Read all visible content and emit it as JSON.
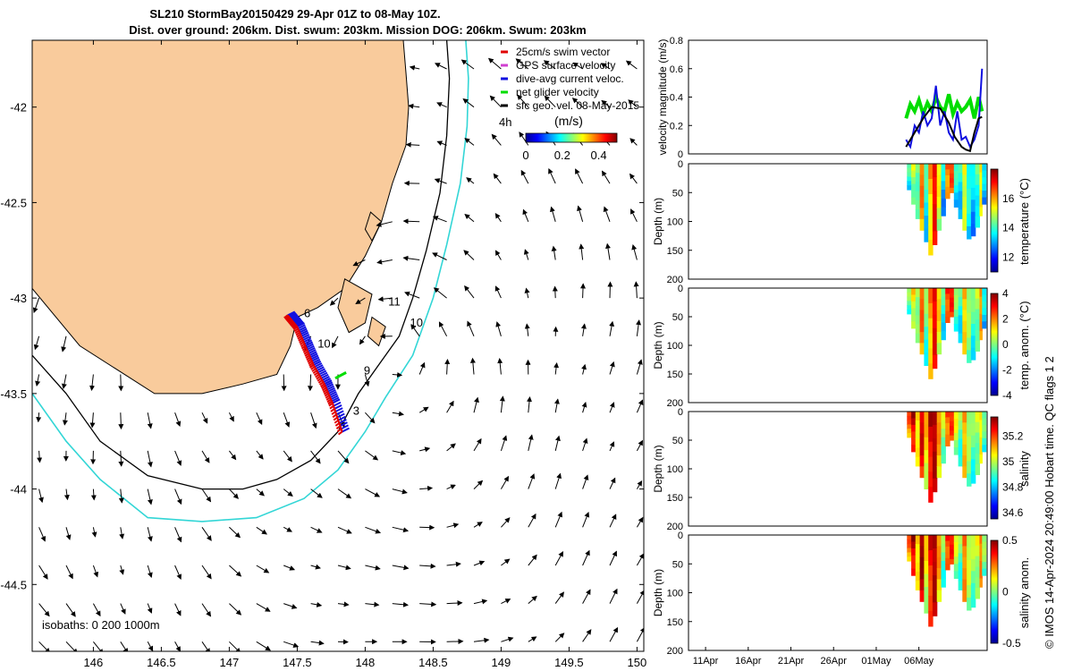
{
  "title_line1": "SL210 StormBay20150429 29-Apr 01Z to 08-May 10Z.",
  "title_line2": "Dist. over ground: 206km. Dist. swum: 203km. Mission DOG: 206km. Swum: 203km",
  "credit": "© IMOS 14-Apr-2024 20:49:00 Hobart time. QC flags 1  2",
  "colors": {
    "land": "#f9cb9c",
    "isobath_200": "#000000",
    "isobath_1000": "#33d6d6",
    "track_red": "#e00000",
    "track_blue": "#1010e0",
    "net_green": "#00dd00",
    "vector": "#000000"
  },
  "chart_data": [
    {
      "type": "map",
      "name": "glider track map",
      "xlim": [
        145.55,
        150.05
      ],
      "ylim": [
        -44.85,
        -41.65
      ],
      "xticks": [
        146,
        146.5,
        147,
        147.5,
        148,
        148.5,
        149,
        149.5,
        150
      ],
      "xtick_labels": [
        "146",
        "146.5",
        "147",
        "147.5",
        "148",
        "148.5",
        "149",
        "149.5",
        "150"
      ],
      "yticks": [
        -42,
        -42.5,
        -43,
        -43.5,
        -44,
        -44.5
      ],
      "ytick_labels": [
        "-42",
        "-42.5",
        "-43",
        "-43.5",
        "-44",
        "-44.5"
      ],
      "legend": [
        {
          "label": "25cm/s swim vector",
          "color": "#e00000"
        },
        {
          "label": "GPS surface velocity",
          "color": "#d040d0"
        },
        {
          "label": "dive-avg current veloc.",
          "color": "#1010e0"
        },
        {
          "label": "net glider velocity",
          "color": "#00dd00"
        },
        {
          "label": "sfc geo. vel. 08-May-2015",
          "color": "#000000"
        }
      ],
      "colorbar": {
        "label": "(m/s)",
        "ticks": [
          0,
          0.2,
          0.4
        ],
        "tick_labels": [
          "0",
          "0.2",
          "0.4"
        ],
        "range": [
          0,
          0.5
        ]
      },
      "colorbar_note": "4h",
      "isobath_note": "isobaths: 0   200  1000m",
      "track": [
        [
          147.43,
          -43.09
        ],
        [
          147.5,
          -43.15
        ],
        [
          147.56,
          -43.25
        ],
        [
          147.62,
          -43.35
        ],
        [
          147.7,
          -43.45
        ],
        [
          147.76,
          -43.55
        ],
        [
          147.83,
          -43.7
        ]
      ],
      "day_labels": [
        {
          "text": "6",
          "lon": 147.55,
          "lat": -43.1
        },
        {
          "text": "10",
          "lon": 147.65,
          "lat": -43.26
        },
        {
          "text": "9",
          "lon": 147.99,
          "lat": -43.4
        },
        {
          "text": "3",
          "lon": 147.91,
          "lat": -43.61
        },
        {
          "text": "11",
          "lon": 148.17,
          "lat": -43.04
        },
        {
          "text": "10",
          "lon": 148.33,
          "lat": -43.15
        }
      ],
      "land": [
        [
          145.55,
          -41.65
        ],
        [
          148.28,
          -41.65
        ],
        [
          148.3,
          -41.82
        ],
        [
          148.32,
          -42.0
        ],
        [
          148.3,
          -42.2
        ],
        [
          148.2,
          -42.4
        ],
        [
          148.12,
          -42.6
        ],
        [
          148.0,
          -42.78
        ],
        [
          147.85,
          -42.95
        ],
        [
          147.65,
          -43.05
        ],
        [
          147.5,
          -43.1
        ],
        [
          147.45,
          -43.25
        ],
        [
          147.35,
          -43.4
        ],
        [
          147.1,
          -43.45
        ],
        [
          146.8,
          -43.5
        ],
        [
          146.45,
          -43.5
        ],
        [
          145.9,
          -43.25
        ],
        [
          145.55,
          -42.95
        ]
      ],
      "islands": [
        [
          [
            148.04,
            -42.55
          ],
          [
            148.12,
            -42.6
          ],
          [
            148.05,
            -42.7
          ],
          [
            148.0,
            -42.64
          ]
        ],
        [
          [
            147.85,
            -42.9
          ],
          [
            148.05,
            -42.98
          ],
          [
            148.0,
            -43.13
          ],
          [
            147.88,
            -43.18
          ],
          [
            147.8,
            -43.05
          ]
        ],
        [
          [
            148.05,
            -43.1
          ],
          [
            148.15,
            -43.15
          ],
          [
            148.1,
            -43.25
          ],
          [
            148.02,
            -43.2
          ]
        ]
      ],
      "isobath_200m": [
        [
          145.55,
          -43.3
        ],
        [
          145.8,
          -43.5
        ],
        [
          146.05,
          -43.75
        ],
        [
          146.4,
          -43.93
        ],
        [
          146.8,
          -44.0
        ],
        [
          147.1,
          -44.0
        ],
        [
          147.35,
          -43.95
        ],
        [
          147.6,
          -43.85
        ],
        [
          147.8,
          -43.7
        ],
        [
          147.95,
          -43.5
        ],
        [
          148.1,
          -43.35
        ],
        [
          148.25,
          -43.2
        ],
        [
          148.35,
          -43.0
        ],
        [
          148.45,
          -42.75
        ],
        [
          148.55,
          -42.45
        ],
        [
          148.6,
          -42.15
        ],
        [
          148.62,
          -41.85
        ],
        [
          148.6,
          -41.65
        ]
      ],
      "isobath_1000m": [
        [
          145.55,
          -43.5
        ],
        [
          145.8,
          -43.75
        ],
        [
          146.05,
          -43.95
        ],
        [
          146.4,
          -44.15
        ],
        [
          146.8,
          -44.17
        ],
        [
          147.2,
          -44.15
        ],
        [
          147.55,
          -44.05
        ],
        [
          147.8,
          -43.9
        ],
        [
          148.0,
          -43.7
        ],
        [
          148.15,
          -43.52
        ],
        [
          148.35,
          -43.3
        ],
        [
          148.5,
          -43.0
        ],
        [
          148.6,
          -42.72
        ],
        [
          148.7,
          -42.4
        ],
        [
          148.75,
          -42.1
        ],
        [
          148.76,
          -41.85
        ],
        [
          148.74,
          -41.65
        ]
      ]
    },
    {
      "type": "line",
      "name": "velocity magnitude",
      "ylabel": "velocity magnitude (m/s)",
      "ylim": [
        0,
        0.8
      ],
      "yticks": [
        0,
        0.2,
        0.4,
        0.6,
        0.8
      ],
      "xlim": [
        0,
        35
      ],
      "series": [
        {
          "name": "net glider velocity",
          "color": "#00dd00",
          "x": [
            25.5,
            26,
            26.5,
            27,
            27.5,
            28,
            28.5,
            29,
            29.5,
            30,
            30.5,
            31,
            31.5,
            32,
            32.5,
            33,
            33.5,
            34,
            34.4
          ],
          "values": [
            0.25,
            0.35,
            0.3,
            0.38,
            0.28,
            0.36,
            0.3,
            0.4,
            0.33,
            0.3,
            0.42,
            0.28,
            0.36,
            0.3,
            0.33,
            0.38,
            0.25,
            0.4,
            0.3
          ]
        },
        {
          "name": "dive-avg current veloc.",
          "color": "#1010e0",
          "x": [
            25.5,
            26,
            26.5,
            27,
            27.5,
            28,
            28.5,
            29,
            29.5,
            30,
            30.5,
            31,
            31.5,
            32,
            32.5,
            33,
            33.5,
            34,
            34.4
          ],
          "values": [
            0.1,
            0.05,
            0.2,
            0.15,
            0.3,
            0.2,
            0.25,
            0.48,
            0.2,
            0.3,
            0.15,
            0.1,
            0.3,
            0.1,
            0.12,
            0.05,
            0.1,
            0.2,
            0.6
          ]
        },
        {
          "name": "sfc geo. vel.",
          "color": "#000000",
          "x": [
            25.5,
            26.5,
            27.5,
            28.5,
            29.5,
            30.5,
            31.2,
            32,
            32.5,
            33,
            33.5,
            34,
            34.4
          ],
          "values": [
            0.05,
            0.15,
            0.25,
            0.33,
            0.32,
            0.22,
            0.12,
            0.05,
            0.03,
            0.02,
            0.15,
            0.25,
            0.26
          ]
        }
      ]
    },
    {
      "type": "heatmap",
      "name": "temperature section",
      "ylabel": "Depth (m)",
      "colorbar_label": "temperature (°C)",
      "colorbar_ticks": [
        12,
        14,
        16
      ],
      "color_range": [
        11,
        18
      ],
      "yticks": [
        50,
        100,
        150,
        200
      ],
      "ylim": [
        0,
        200
      ],
      "x_days": [
        25.6,
        27.7,
        29.8,
        31.9,
        34.0
      ],
      "columns": [
        25.6,
        26.1,
        26.6,
        27.1,
        27.6,
        28.1,
        28.6,
        29.1,
        29.6,
        30.1,
        30.6,
        31.1,
        31.6,
        32.1,
        32.6,
        33.1,
        33.6,
        34.1,
        34.4
      ],
      "max_depth": [
        45,
        70,
        95,
        115,
        135,
        158,
        140,
        115,
        90,
        60,
        50,
        75,
        95,
        115,
        130,
        125,
        110,
        90,
        70
      ],
      "values": [
        14.2,
        15.0,
        14.6,
        16.5,
        14.0,
        16.0,
        17.5,
        15.5,
        13.5,
        16.5,
        17.0,
        14.0,
        13.8,
        15.5,
        14.0,
        13.5,
        14.2,
        15.8,
        13.6
      ]
    },
    {
      "type": "heatmap",
      "name": "temperature anomaly section",
      "ylabel": "Depth (m)",
      "colorbar_label": "temp. anom. (°C)",
      "colorbar_ticks": [
        -4,
        -2,
        0,
        2,
        4
      ],
      "color_range": [
        -4,
        4
      ],
      "yticks": [
        50,
        100,
        150,
        200
      ],
      "ylim": [
        0,
        200
      ],
      "columns": [
        25.6,
        26.1,
        26.6,
        27.1,
        27.6,
        28.1,
        28.6,
        29.1,
        29.6,
        30.1,
        30.6,
        31.1,
        31.6,
        32.1,
        32.6,
        33.1,
        33.6,
        34.1,
        34.4
      ],
      "max_depth": [
        45,
        70,
        95,
        115,
        135,
        158,
        140,
        115,
        90,
        60,
        50,
        75,
        95,
        115,
        130,
        125,
        110,
        90,
        70
      ],
      "values": [
        0.2,
        1.2,
        0.5,
        2.5,
        0.0,
        2.0,
        3.5,
        1.5,
        -0.5,
        2.8,
        3.2,
        0.2,
        -0.5,
        1.8,
        0.5,
        -0.2,
        0.4,
        2.2,
        -0.8
      ]
    },
    {
      "type": "heatmap",
      "name": "salinity section",
      "ylabel": "Depth (m)",
      "colorbar_label": "salinity",
      "colorbar_ticks": [
        34.6,
        34.8,
        35,
        35.2
      ],
      "color_range": [
        34.55,
        35.35
      ],
      "yticks": [
        50,
        100,
        150,
        200
      ],
      "ylim": [
        0,
        200
      ],
      "columns": [
        25.6,
        26.1,
        26.6,
        27.1,
        27.6,
        28.1,
        28.6,
        29.1,
        29.6,
        30.1,
        30.6,
        31.1,
        31.6,
        32.1,
        32.6,
        33.1,
        33.6,
        34.1,
        34.4
      ],
      "max_depth": [
        45,
        70,
        95,
        115,
        135,
        158,
        140,
        115,
        90,
        60,
        50,
        75,
        95,
        115,
        130,
        125,
        110,
        90,
        70
      ],
      "values": [
        35.2,
        35.3,
        35.1,
        35.3,
        35.1,
        35.3,
        35.35,
        35.15,
        35.0,
        35.2,
        35.25,
        35.05,
        34.95,
        35.15,
        35.0,
        34.95,
        35.0,
        35.1,
        34.95
      ]
    },
    {
      "type": "heatmap",
      "name": "salinity anomaly section",
      "ylabel": "Depth (m)",
      "colorbar_label": "salinity anom.",
      "colorbar_ticks": [
        -0.5,
        0,
        0.5
      ],
      "colorbar_tick_labels": [
        "-0.5",
        "0",
        "0.5"
      ],
      "color_range": [
        -0.5,
        0.5
      ],
      "yticks": [
        50,
        100,
        150,
        200
      ],
      "ylim": [
        0,
        200
      ],
      "columns": [
        25.6,
        26.1,
        26.6,
        27.1,
        27.6,
        28.1,
        28.6,
        29.1,
        29.6,
        30.1,
        30.6,
        31.1,
        31.6,
        32.1,
        32.6,
        33.1,
        33.6,
        34.1,
        34.4
      ],
      "max_depth": [
        45,
        70,
        95,
        115,
        135,
        158,
        140,
        115,
        90,
        60,
        50,
        75,
        95,
        115,
        130,
        125,
        110,
        90,
        70
      ],
      "values": [
        0.3,
        0.45,
        0.2,
        0.5,
        0.15,
        0.4,
        0.5,
        0.25,
        0.0,
        0.35,
        0.4,
        0.1,
        0.0,
        0.3,
        0.1,
        0.05,
        0.1,
        0.3,
        0.05
      ]
    }
  ],
  "time_axis": {
    "xlim": [
      0,
      35
    ],
    "ticks": [
      2,
      7,
      12,
      17,
      22,
      27
    ],
    "tick_labels": [
      "11Apr",
      "16Apr",
      "21Apr",
      "26Apr",
      "01May",
      "06May"
    ],
    "top_yticks": [
      0,
      50,
      100,
      150,
      200
    ]
  }
}
